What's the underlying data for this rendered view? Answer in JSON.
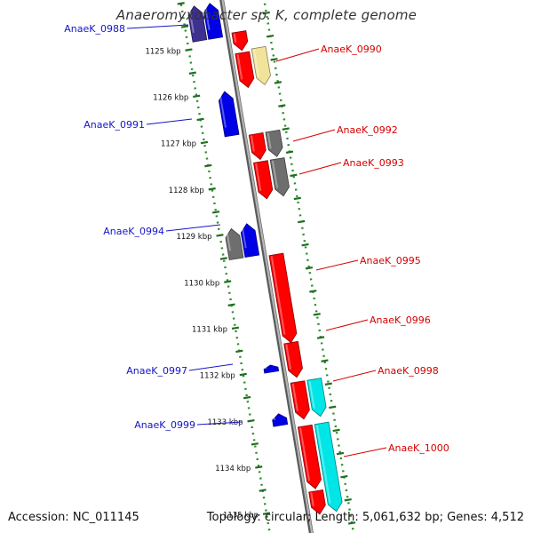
{
  "title": "Anaeromyxobacter sp. K, complete genome",
  "footer": {
    "accession": "Accession: NC_011145",
    "summary": "Topology: circular; Length: 5,061,632 bp; Genes: 4,512"
  },
  "colors": {
    "backbone": "#8c8c8c",
    "ruler": "#2e8b2e",
    "forward_red": "#ff0000",
    "blue": "#0000e6",
    "gray": "#6e6e6e",
    "cyan": "#00e6e6",
    "pale_yellow": "#f2e39a",
    "dark_purple": "#3d3090",
    "label_left": "#1515c8",
    "label_right": "#d40000"
  },
  "ruler_ticks": [
    "1125 kbp",
    "1126 kbp",
    "1127 kbp",
    "1128 kbp",
    "1129 kbp",
    "1130 kbp",
    "1131 kbp",
    "1132 kbp",
    "1133 kbp",
    "1134 kbp",
    "1135 kbp"
  ],
  "gene_labels_left": [
    "AnaeK_0988",
    "AnaeK_0991",
    "AnaeK_0994",
    "AnaeK_0997",
    "AnaeK_0999"
  ],
  "gene_labels_right": [
    "AnaeK_0990",
    "AnaeK_0992",
    "AnaeK_0993",
    "AnaeK_0995",
    "AnaeK_0996",
    "AnaeK_0998",
    "AnaeK_1000"
  ],
  "genes": [
    {
      "label": "AnaeK_0988",
      "color": "dark_purple",
      "strand": "reverse",
      "ring": "inner-2",
      "start_kbp": 1124.1,
      "end_kbp": 1124.85
    },
    {
      "label": "",
      "color": "blue",
      "strand": "reverse",
      "ring": "inner-1",
      "start_kbp": 1124.1,
      "end_kbp": 1124.85
    },
    {
      "label": "",
      "color": "forward_red",
      "strand": "forward",
      "ring": "outer-1",
      "start_kbp": 1124.8,
      "end_kbp": 1125.2
    },
    {
      "label": "AnaeK_0990",
      "color": "forward_red",
      "strand": "forward",
      "ring": "outer-1",
      "start_kbp": 1125.25,
      "end_kbp": 1126.0
    },
    {
      "label": "",
      "color": "pale_yellow",
      "strand": "forward",
      "ring": "outer-2",
      "start_kbp": 1125.2,
      "end_kbp": 1126.0
    },
    {
      "label": "AnaeK_0991",
      "color": "blue",
      "strand": "reverse",
      "ring": "inner-1",
      "start_kbp": 1126.0,
      "end_kbp": 1126.95
    },
    {
      "label": "AnaeK_0992",
      "color": "forward_red",
      "strand": "forward",
      "ring": "outer-1",
      "start_kbp": 1127.0,
      "end_kbp": 1127.55
    },
    {
      "label": "",
      "color": "gray",
      "strand": "forward",
      "ring": "outer-2",
      "start_kbp": 1127.0,
      "end_kbp": 1127.55
    },
    {
      "label": "AnaeK_0993",
      "color": "forward_red",
      "strand": "forward",
      "ring": "outer-1",
      "start_kbp": 1127.6,
      "end_kbp": 1128.4
    },
    {
      "label": "",
      "color": "gray",
      "strand": "forward",
      "ring": "outer-2",
      "start_kbp": 1127.6,
      "end_kbp": 1128.4
    },
    {
      "label": "AnaeK_0994",
      "color": "gray",
      "strand": "reverse",
      "ring": "inner-2",
      "start_kbp": 1128.9,
      "end_kbp": 1129.55
    },
    {
      "label": "",
      "color": "blue",
      "strand": "reverse",
      "ring": "inner-1",
      "start_kbp": 1128.85,
      "end_kbp": 1129.55
    },
    {
      "label": "AnaeK_0995",
      "color": "forward_red",
      "strand": "forward",
      "ring": "outer-1",
      "start_kbp": 1129.6,
      "end_kbp": 1131.5
    },
    {
      "label": "AnaeK_0996",
      "color": "forward_red",
      "strand": "forward",
      "ring": "outer-1",
      "start_kbp": 1131.5,
      "end_kbp": 1132.25
    },
    {
      "label": "AnaeK_0997",
      "color": "blue",
      "strand": "reverse",
      "ring": "inner-1",
      "start_kbp": 1131.9,
      "end_kbp": 1132.05
    },
    {
      "label": "AnaeK_0998",
      "color": "forward_red",
      "strand": "forward",
      "ring": "outer-1",
      "start_kbp": 1132.35,
      "end_kbp": 1133.15
    },
    {
      "label": "",
      "color": "cyan",
      "strand": "forward",
      "ring": "outer-2",
      "start_kbp": 1132.35,
      "end_kbp": 1133.15
    },
    {
      "label": "AnaeK_0999",
      "color": "blue",
      "strand": "reverse",
      "ring": "inner-1",
      "start_kbp": 1132.95,
      "end_kbp": 1133.2
    },
    {
      "label": "AnaeK_1000",
      "color": "forward_red",
      "strand": "forward",
      "ring": "outer-1",
      "start_kbp": 1133.3,
      "end_kbp": 1134.65
    },
    {
      "label": "",
      "color": "cyan",
      "strand": "forward",
      "ring": "outer-2",
      "start_kbp": 1133.3,
      "end_kbp": 1135.2
    },
    {
      "label": "",
      "color": "forward_red",
      "strand": "forward",
      "ring": "outer-1",
      "start_kbp": 1134.7,
      "end_kbp": 1135.2
    }
  ]
}
